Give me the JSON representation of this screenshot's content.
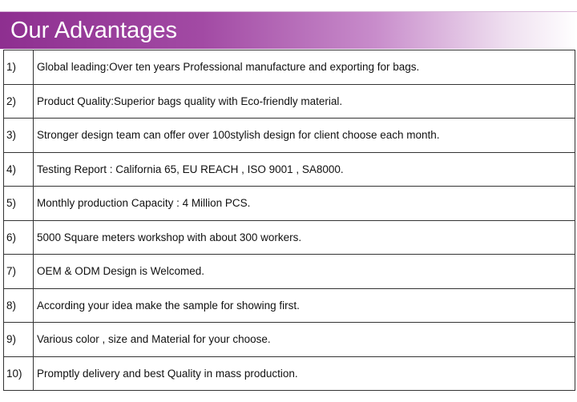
{
  "header": {
    "title": "Our Advantages"
  },
  "table": {
    "rows": [
      [
        "1)",
        "Global leading:Over ten years Professional manufacture and exporting for bags."
      ],
      [
        "2)",
        "Product Quality:Superior bags quality with Eco-friendly material."
      ],
      [
        "3)",
        "Stronger design team can offer over 100stylish design for client choose each month."
      ],
      [
        "4)",
        "Testing Report : California 65, EU REACH , ISO 9001 , SA8000."
      ],
      [
        "5)",
        "Monthly production Capacity : 4 Million PCS."
      ],
      [
        "6)",
        "5000 Square meters workshop with about 300 workers."
      ],
      [
        "7)",
        "OEM & ODM Design is Welcomed."
      ],
      [
        "8)",
        "According your idea make the sample for showing first."
      ],
      [
        "9)",
        "Various color , size and Material for your choose."
      ],
      [
        "10)",
        "Promptly delivery and best Quality in mass production."
      ]
    ]
  }
}
